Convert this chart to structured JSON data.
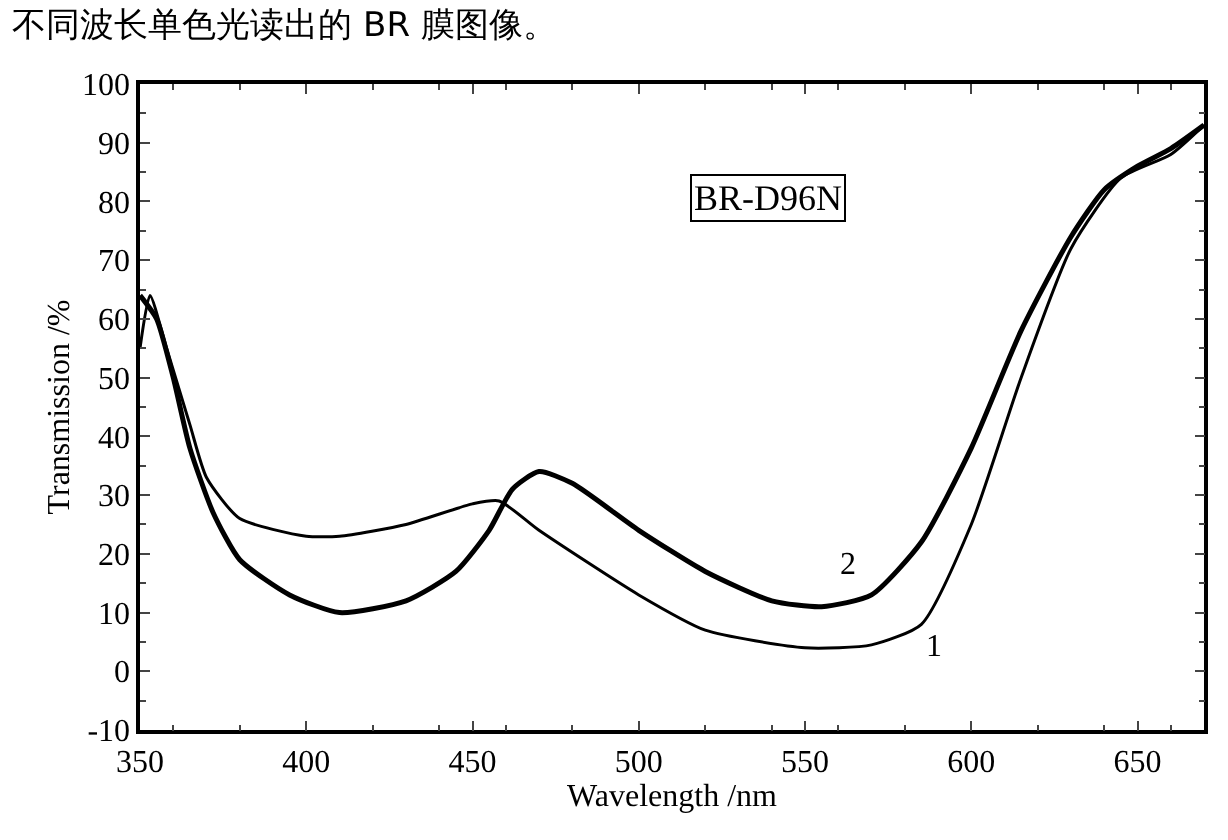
{
  "chart_data": {
    "type": "line",
    "title": "不同波长单色光读出的 BR 膜图像。",
    "xlabel": "Wavelength /nm",
    "ylabel": "Transmission /%",
    "xlim": [
      350,
      670
    ],
    "xticks": [
      350,
      400,
      450,
      500,
      550,
      600,
      650
    ],
    "ylim": [
      -10,
      100
    ],
    "yticks": [
      -10,
      0,
      10,
      20,
      30,
      40,
      50,
      60,
      70,
      80,
      90,
      100
    ],
    "marker": "none",
    "line_style": "solid",
    "series": [
      {
        "color": "#000000",
        "x": [
          350,
          353,
          358,
          365,
          370,
          380,
          400,
          410,
          430,
          450,
          458,
          470,
          500,
          520,
          550,
          570,
          585,
          600,
          615,
          630,
          645,
          660,
          670
        ],
        "values": [
          55,
          64,
          55,
          42,
          33,
          26,
          23,
          23,
          25,
          28.5,
          29,
          24,
          13,
          7,
          4,
          4.5,
          8,
          25,
          50,
          72,
          84,
          88,
          93
        ]
      },
      {
        "color": "#000000",
        "x": [
          350,
          355,
          360,
          365,
          372,
          380,
          395,
          410,
          430,
          445,
          455,
          462,
          470,
          480,
          500,
          520,
          540,
          555,
          570,
          585,
          600,
          615,
          630,
          640,
          650,
          660,
          670
        ],
        "values": [
          64,
          60,
          50,
          38,
          27,
          19,
          13,
          10,
          12,
          17,
          24,
          31,
          34,
          32,
          24,
          17,
          12,
          11,
          13,
          22,
          38,
          58,
          74,
          82,
          86,
          89,
          93
        ]
      }
    ],
    "annotations": [
      "1",
      "2",
      "BR-D96N"
    ]
  }
}
